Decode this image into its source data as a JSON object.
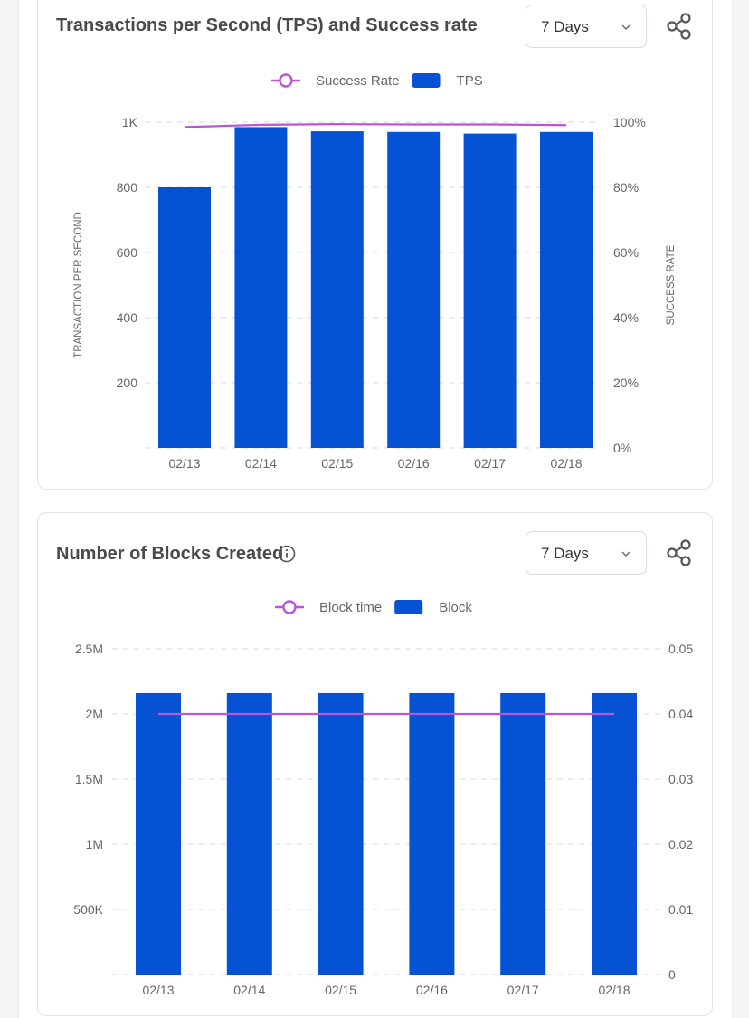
{
  "colors": {
    "bar": "#0553d4",
    "line": "#b955d9",
    "grid": "#d9d9de",
    "axis_text": "#666666"
  },
  "tps_card": {
    "title": "Transactions per Second (TPS) and Success rate",
    "range_select": {
      "value": "7 Days"
    },
    "share_icon": "share-icon"
  },
  "blocks_card": {
    "title": "Number of Blocks Created",
    "info_icon": "info-icon",
    "range_select": {
      "value": "7 Days"
    },
    "share_icon": "share-icon"
  },
  "chart_data": [
    {
      "type": "bar",
      "title": "Transactions per Second (TPS) and Success rate",
      "categories": [
        "02/13",
        "02/14",
        "02/15",
        "02/16",
        "02/17",
        "02/18"
      ],
      "series": [
        {
          "name": "TPS",
          "kind": "bar",
          "axis": "left",
          "values": [
            800,
            985,
            972,
            970,
            965,
            970
          ]
        },
        {
          "name": "Success Rate",
          "kind": "line",
          "axis": "right",
          "values": [
            98.5,
            99.2,
            99.4,
            99.3,
            99.3,
            99.1
          ]
        }
      ],
      "legend": [
        "Success Rate",
        "TPS"
      ],
      "ylabel": "TRANSACTION PER SECOND",
      "y2label": "SUCCESS RATE",
      "ylim": [
        0,
        1000
      ],
      "y2lim": [
        0,
        100
      ],
      "yticks": [
        {
          "v": 200,
          "label": "200"
        },
        {
          "v": 400,
          "label": "400"
        },
        {
          "v": 600,
          "label": "600"
        },
        {
          "v": 800,
          "label": "800"
        },
        {
          "v": 1000,
          "label": "1K"
        }
      ],
      "y2ticks": [
        {
          "v": 0,
          "label": "0%"
        },
        {
          "v": 20,
          "label": "20%"
        },
        {
          "v": 40,
          "label": "40%"
        },
        {
          "v": 60,
          "label": "60%"
        },
        {
          "v": 80,
          "label": "80%"
        },
        {
          "v": 100,
          "label": "100%"
        }
      ],
      "grid": true,
      "legend_position": "top-center"
    },
    {
      "type": "bar",
      "title": "Number of Blocks Created",
      "categories": [
        "02/13",
        "02/14",
        "02/15",
        "02/16",
        "02/17",
        "02/18"
      ],
      "series": [
        {
          "name": "Block",
          "kind": "bar",
          "axis": "left",
          "values": [
            2160000,
            2160000,
            2160000,
            2160000,
            2160000,
            2160000
          ]
        },
        {
          "name": "Block time",
          "kind": "line",
          "axis": "right",
          "values": [
            0.04,
            0.04,
            0.04,
            0.04,
            0.04,
            0.04
          ]
        }
      ],
      "legend": [
        "Block time",
        "Block"
      ],
      "ylabel": "",
      "y2label": "",
      "ylim": [
        0,
        2500000
      ],
      "y2lim": [
        0,
        0.05
      ],
      "yticks": [
        {
          "v": 500000,
          "label": "500K"
        },
        {
          "v": 1000000,
          "label": "1M"
        },
        {
          "v": 1500000,
          "label": "1.5M"
        },
        {
          "v": 2000000,
          "label": "2M"
        },
        {
          "v": 2500000,
          "label": "2.5M"
        }
      ],
      "y2ticks": [
        {
          "v": 0,
          "label": "0"
        },
        {
          "v": 0.01,
          "label": "0.01"
        },
        {
          "v": 0.02,
          "label": "0.02"
        },
        {
          "v": 0.03,
          "label": "0.03"
        },
        {
          "v": 0.04,
          "label": "0.04"
        },
        {
          "v": 0.05,
          "label": "0.05"
        }
      ],
      "grid": true,
      "legend_position": "top-center"
    }
  ]
}
